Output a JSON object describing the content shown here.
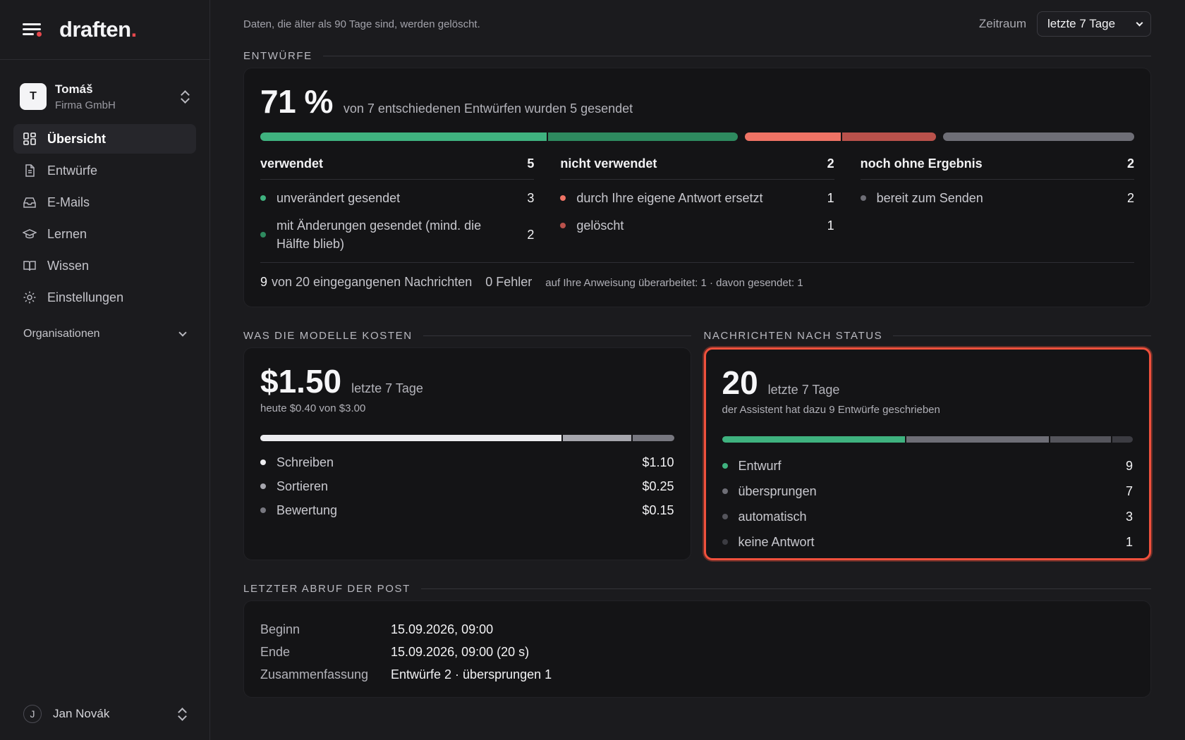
{
  "brand": {
    "name": "draften",
    "dot": "."
  },
  "account": {
    "initial": "T",
    "name": "Tomáš",
    "company": "Firma GmbH"
  },
  "nav": [
    {
      "label": "Übersicht",
      "icon": "dashboard-icon",
      "active": true
    },
    {
      "label": "Entwürfe",
      "icon": "document-icon",
      "active": false
    },
    {
      "label": "E-Mails",
      "icon": "inbox-icon",
      "active": false
    },
    {
      "label": "Lernen",
      "icon": "graduation-cap-icon",
      "active": false
    },
    {
      "label": "Wissen",
      "icon": "book-icon",
      "active": false
    },
    {
      "label": "Einstellungen",
      "icon": "gear-icon",
      "active": false
    }
  ],
  "organizations": {
    "label": "Organisationen"
  },
  "user": {
    "initial": "J",
    "name": "Jan Novák"
  },
  "topbar": {
    "retention_notice": "Daten, die älter als 90 Tage sind, werden gelöscht.",
    "range_label": "Zeitraum",
    "range_value": "letzte 7 Tage"
  },
  "drafts": {
    "section": "Entwürfe",
    "percent": "71 %",
    "summary": "von 7 entschiedenen Entwürfen wurden 5 gesendet",
    "bar": [
      {
        "share": 5,
        "color": "#3fb27f",
        "parts": [
          {
            "share": 3,
            "color": "#3fb27f"
          },
          {
            "share": 2,
            "color": "#2e8a5f"
          }
        ]
      },
      {
        "share": 2,
        "color": "#ef7365",
        "parts": [
          {
            "share": 1,
            "color": "#ef7365"
          },
          {
            "share": 1,
            "color": "#b9514b"
          }
        ]
      },
      {
        "share": 2,
        "color": "#6e6e76",
        "parts": [
          {
            "share": 2,
            "color": "#6e6e76"
          }
        ]
      }
    ],
    "columns": [
      {
        "title": "verwendet",
        "total": "5",
        "rows": [
          {
            "label": "unverändert gesendet",
            "value": "3",
            "color": "#3fb27f"
          },
          {
            "label": "mit Änderungen gesendet (mind. die Hälfte blieb)",
            "value": "2",
            "color": "#2e8a5f"
          }
        ]
      },
      {
        "title": "nicht verwendet",
        "total": "2",
        "rows": [
          {
            "label": "durch Ihre eigene Antwort ersetzt",
            "value": "1",
            "color": "#ef7365"
          },
          {
            "label": "gelöscht",
            "value": "1",
            "color": "#b9514b"
          }
        ]
      },
      {
        "title": "noch ohne Ergebnis",
        "total": "2",
        "rows": [
          {
            "label": "bereit zum Senden",
            "value": "2",
            "color": "#6e6e76"
          }
        ]
      }
    ],
    "footer": {
      "received_count": "9",
      "received_text": "von 20 eingegangenen Nachrichten",
      "errors": "0 Fehler",
      "revised": "auf Ihre Anweisung überarbeitet: 1 · davon gesendet: 1"
    }
  },
  "costs": {
    "section": "Was die Modelle kosten",
    "total": "$1.50",
    "period": "letzte 7 Tage",
    "today": "heute $0.40 von $3.00",
    "items": [
      {
        "label": "Schreiben",
        "value": "$1.10",
        "amount": 1.1,
        "color": "#ededf0"
      },
      {
        "label": "Sortieren",
        "value": "$0.25",
        "amount": 0.25,
        "color": "#a6a6ad"
      },
      {
        "label": "Bewertung",
        "value": "$0.15",
        "amount": 0.15,
        "color": "#77777f"
      }
    ]
  },
  "status": {
    "section": "Nachrichten nach Status",
    "total": "20",
    "period": "letzte 7 Tage",
    "note": "der Assistent hat dazu 9 Entwürfe geschrieben",
    "items": [
      {
        "label": "Entwurf",
        "value": "9",
        "count": 9,
        "color": "#3fb27f"
      },
      {
        "label": "übersprungen",
        "value": "7",
        "count": 7,
        "color": "#6e6e76"
      },
      {
        "label": "automatisch",
        "value": "3",
        "count": 3,
        "color": "#55555c"
      },
      {
        "label": "keine Antwort",
        "value": "1",
        "count": 1,
        "color": "#3c3c42"
      }
    ]
  },
  "post": {
    "section": "Letzter Abruf der Post",
    "rows": [
      {
        "key": "Beginn",
        "value": "15.09.2026, 09:00"
      },
      {
        "key": "Ende",
        "value": "15.09.2026, 09:00 (20 s)"
      },
      {
        "key": "Zusammenfassung",
        "value": "Entwürfe 2 · übersprungen 1"
      }
    ]
  }
}
